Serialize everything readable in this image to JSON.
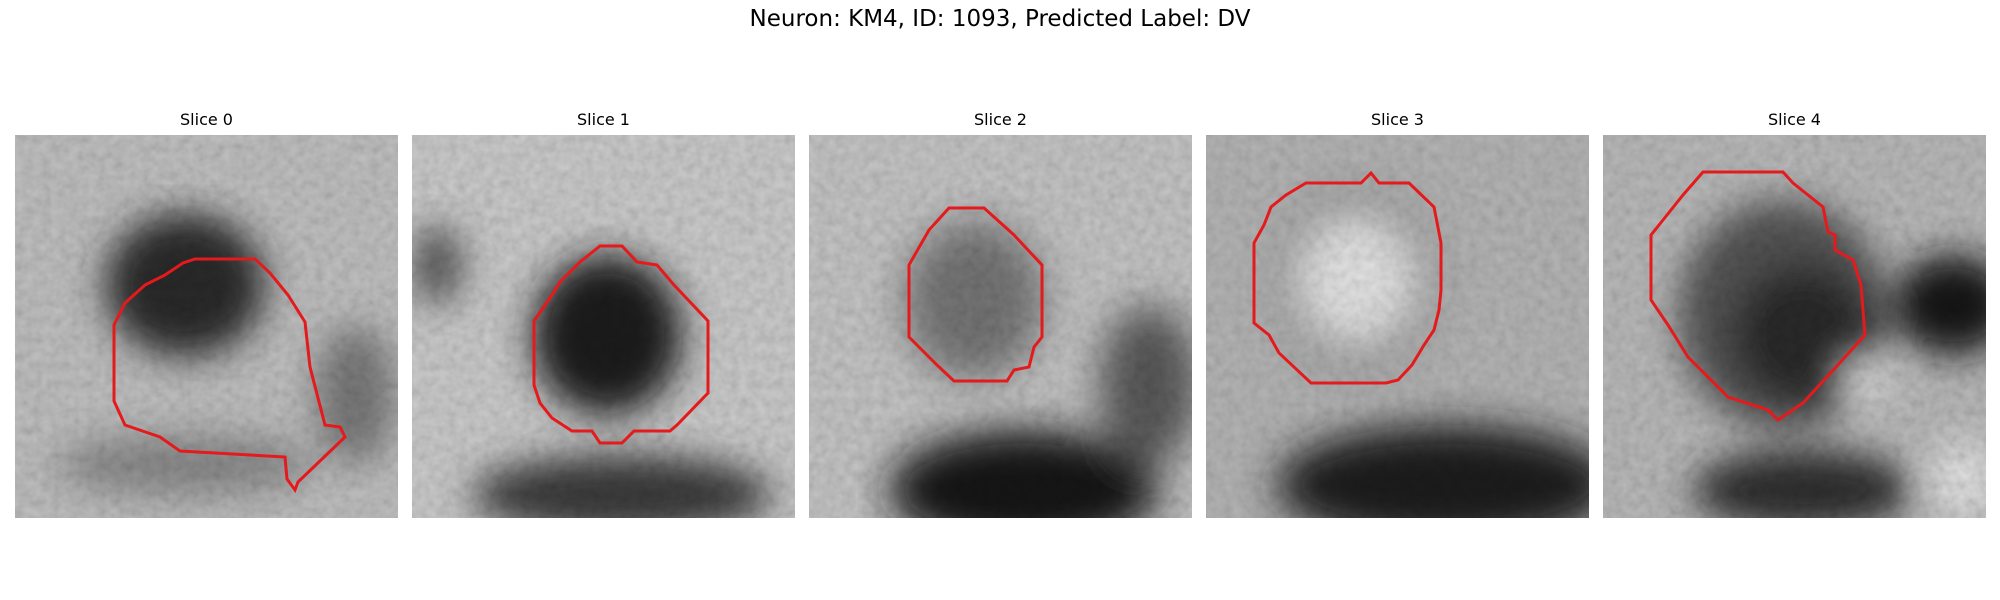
{
  "figure": {
    "title": "Neuron: KM4, ID: 1093, Predicted Label: DV"
  },
  "panels": [
    {
      "title": "Slice 0"
    },
    {
      "title": "Slice 1"
    },
    {
      "title": "Slice 2"
    },
    {
      "title": "Slice 3"
    },
    {
      "title": "Slice 4"
    }
  ],
  "colors": {
    "contour": "#e41a1c",
    "background": "#ffffff"
  }
}
